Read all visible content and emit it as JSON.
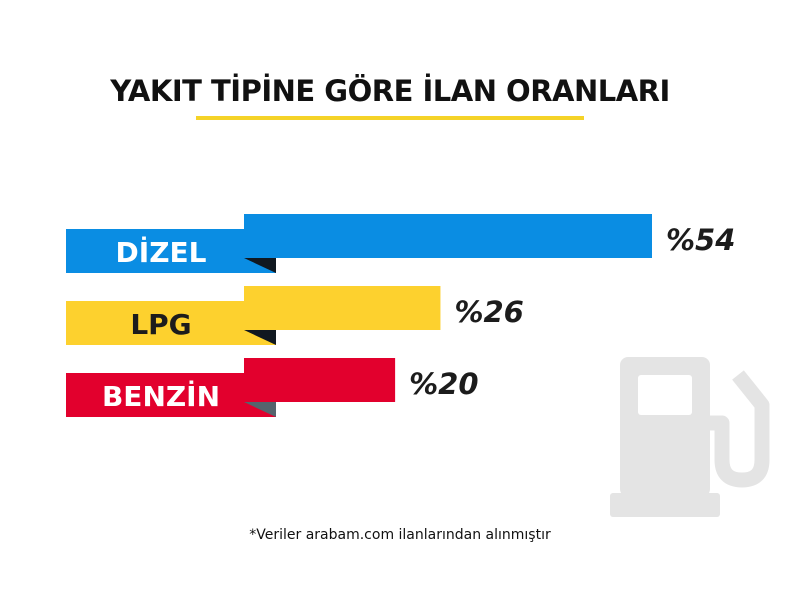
{
  "chart_data": {
    "type": "bar",
    "orientation": "horizontal",
    "title": "YAKIT TİPİNE GÖRE İLAN ORANLARI",
    "categories": [
      "DİZEL",
      "LPG",
      "BENZİN"
    ],
    "values": [
      54,
      26,
      20
    ],
    "value_labels": [
      "%54",
      "%26",
      "%20"
    ],
    "colors": [
      "#0a8de3",
      "#fdd12e",
      "#e2002d"
    ],
    "label_colors": [
      "#ffffff",
      "#1c1c1c",
      "#ffffff"
    ],
    "fold_colors": [
      "#101820",
      "#101820",
      "#55646d"
    ],
    "xlim": [
      0,
      54
    ],
    "grid": false,
    "legend": "none"
  },
  "footnote": "*Veriler arabam.com ilanlarından alınmıştır",
  "icon": "fuel-pump-icon"
}
